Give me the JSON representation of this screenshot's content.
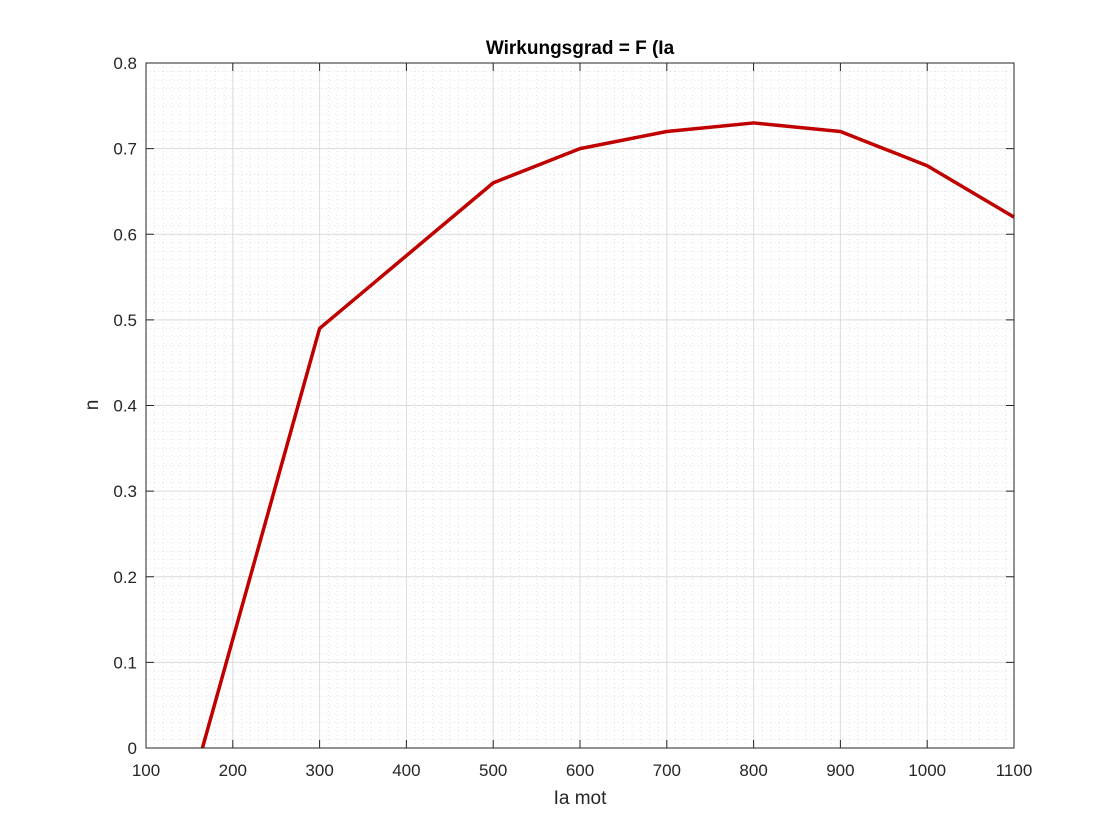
{
  "chart_data": {
    "type": "line",
    "title": "Wirkungsgrad = F (Ia",
    "xlabel": "Ia mot",
    "ylabel": "n",
    "xlim": [
      100,
      1100
    ],
    "ylim": [
      0,
      0.8
    ],
    "grid": true,
    "minor_grid": true,
    "x_ticks": [
      100,
      200,
      300,
      400,
      500,
      600,
      700,
      800,
      900,
      1000,
      1100
    ],
    "y_ticks": [
      0,
      0.1,
      0.2,
      0.3,
      0.4,
      0.5,
      0.6,
      0.7,
      0.8
    ],
    "x_tick_labels": [
      "100",
      "200",
      "300",
      "400",
      "500",
      "600",
      "700",
      "800",
      "900",
      "1000",
      "1100"
    ],
    "y_tick_labels": [
      "0",
      "0.1",
      "0.2",
      "0.3",
      "0.4",
      "0.5",
      "0.6",
      "0.7",
      "0.8"
    ],
    "series": [
      {
        "color": "#c00000",
        "x": [
          165,
          300,
          500,
          600,
          700,
          800,
          900,
          1000,
          1100
        ],
        "y": [
          0,
          0.49,
          0.66,
          0.7,
          0.72,
          0.73,
          0.72,
          0.68,
          0.62
        ]
      }
    ]
  }
}
